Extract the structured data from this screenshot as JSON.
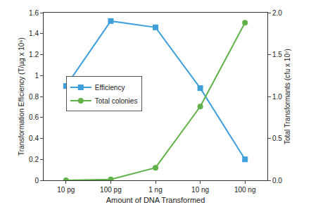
{
  "chart_data": {
    "type": "line",
    "categories": [
      "10 pg",
      "100 pg",
      "1 ng",
      "10 ng",
      "100 ng"
    ],
    "xlabel": "Amount of DNA Transformed",
    "ylabel": "Transformation Efficiency (T/µg x 10⁹)",
    "y2label": "Total Transformants (cfu x 10⁷)",
    "series": [
      {
        "name": "Efficiency",
        "color": "#3f9fdb",
        "marker": "square",
        "values": [
          0.9,
          1.52,
          1.46,
          0.88,
          0.2
        ]
      },
      {
        "name": "Total colonies",
        "color": "#5fb247",
        "marker": "circle",
        "axis": "y2",
        "values": [
          0,
          0.01,
          0.15,
          0.88,
          1.88
        ]
      }
    ],
    "ylim": [
      0,
      1.6
    ],
    "yticks": [
      0,
      0.2,
      0.4,
      0.6,
      0.8,
      1,
      1.2,
      1.4,
      1.6
    ],
    "y2lim": [
      0,
      2
    ],
    "y2ticks": [
      {
        "value": 0,
        "label": "0.0"
      },
      0.5,
      {
        "value": 1,
        "label": "1.0"
      },
      1.5,
      {
        "value": 2,
        "label": "2.0"
      }
    ],
    "grid": false,
    "legend": "left"
  }
}
